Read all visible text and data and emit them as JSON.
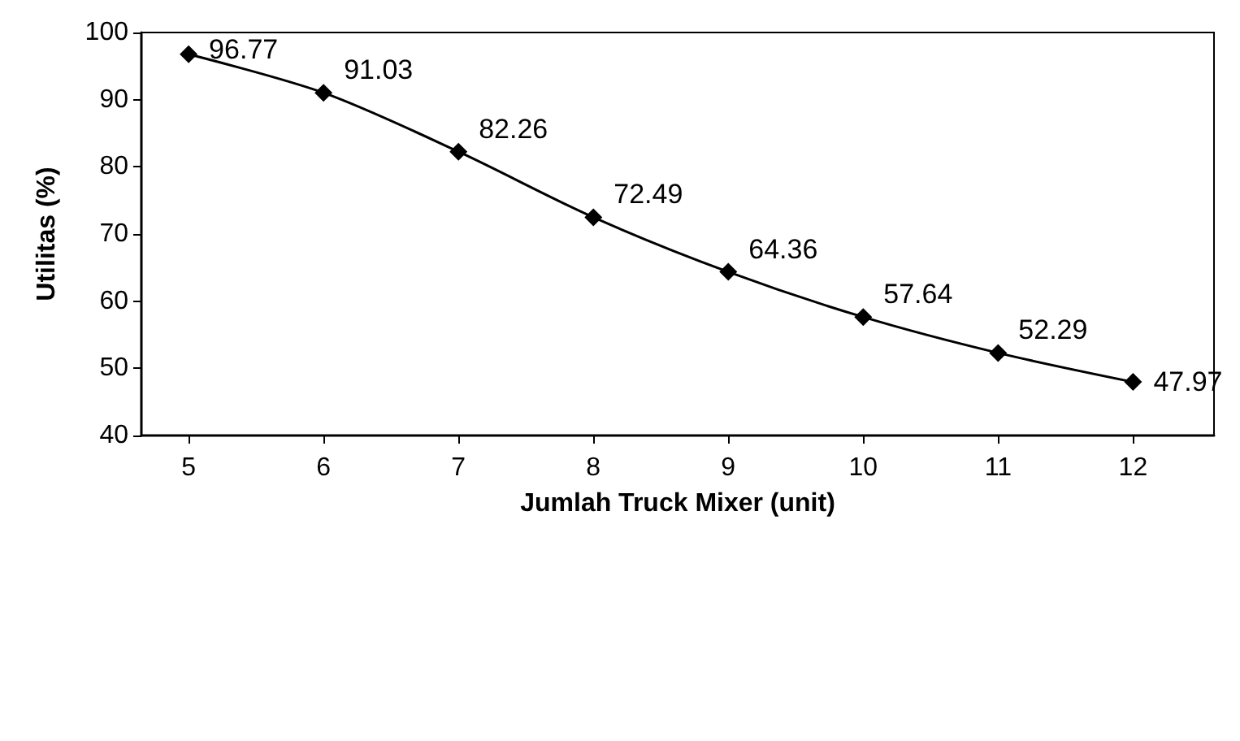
{
  "chart_data": {
    "type": "line",
    "xlabel": "Jumlah Truck Mixer (unit)",
    "ylabel": "Utilitas (%)",
    "x": [
      5,
      6,
      7,
      8,
      9,
      10,
      11,
      12
    ],
    "series": [
      {
        "color": "#000000",
        "values": [
          96.77,
          91.03,
          82.26,
          72.49,
          64.36,
          57.64,
          52.29,
          47.97
        ]
      }
    ],
    "xlim": [
      4.65,
      12.6
    ],
    "xticks": [
      5,
      6,
      7,
      8,
      9,
      10,
      11,
      12
    ],
    "ylim": [
      40,
      100
    ],
    "yticks": [
      40,
      50,
      60,
      70,
      80,
      90,
      100
    ],
    "grid": false,
    "marker": "diamond",
    "line_style": "solid",
    "data_labels": true
  }
}
